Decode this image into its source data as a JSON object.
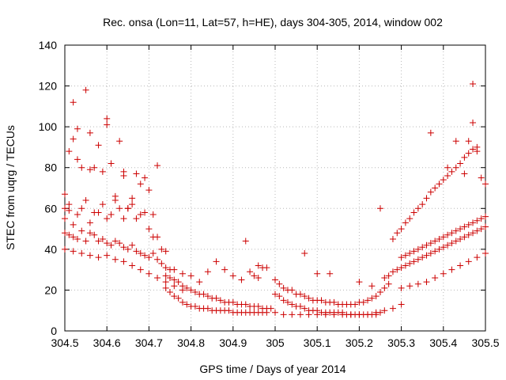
{
  "chart_data": {
    "type": "scatter",
    "title": "Rec. onsa (Lon=11, Lat=57, h=HE), days 304-305, 2014, window 002",
    "xlabel": "GPS time / Days of year 2014",
    "ylabel": "STEC from uqrg / TECUs",
    "xlim": [
      304.5,
      305.5
    ],
    "ylim": [
      0,
      140
    ],
    "x_ticks": [
      304.5,
      304.6,
      304.7,
      304.8,
      304.9,
      305.0,
      305.1,
      305.2,
      305.3,
      305.4,
      305.5
    ],
    "x_tick_labels": [
      "304.5",
      "304.6",
      "304.7",
      "304.8",
      "304.9",
      "305",
      "305.1",
      "305.2",
      "305.3",
      "305.4",
      "305.5"
    ],
    "y_ticks": [
      0,
      20,
      40,
      60,
      80,
      100,
      120,
      140
    ],
    "y_tick_labels": [
      "0",
      "20",
      "40",
      "60",
      "80",
      "100",
      "120",
      "140"
    ],
    "grid": true,
    "marker": "+",
    "color": "#cc0000",
    "series": [
      {
        "name": "",
        "x": [
          304.5,
          304.5,
          304.51,
          304.51,
          304.52,
          304.52,
          304.53,
          304.53,
          304.54,
          304.55,
          304.56,
          304.56,
          304.57,
          304.58,
          304.59,
          304.6,
          304.6,
          304.61,
          304.62,
          304.63,
          304.64,
          304.64,
          304.65,
          304.66,
          304.67,
          304.68,
          304.69,
          304.7,
          304.71,
          304.72,
          304.5,
          304.51,
          304.52,
          304.53,
          304.54,
          304.55,
          304.56,
          304.57,
          304.58,
          304.59,
          304.6,
          304.61,
          304.62,
          304.63,
          304.64,
          304.65,
          304.66,
          304.67,
          304.68,
          304.69,
          304.7,
          304.71,
          304.72,
          304.73,
          304.74,
          304.5,
          304.51,
          304.52,
          304.53,
          304.54,
          304.55,
          304.56,
          304.57,
          304.58,
          304.59,
          304.6,
          304.61,
          304.62,
          304.63,
          304.64,
          304.65,
          304.66,
          304.67,
          304.68,
          304.69,
          304.7,
          304.71,
          304.72,
          304.73,
          304.74,
          304.75,
          304.5,
          304.52,
          304.54,
          304.56,
          304.58,
          304.6,
          304.62,
          304.64,
          304.66,
          304.68,
          304.7,
          304.72,
          304.74,
          304.76,
          304.78,
          304.74,
          304.75,
          304.76,
          304.77,
          304.78,
          304.79,
          304.8,
          304.81,
          304.82,
          304.83,
          304.84,
          304.85,
          304.86,
          304.87,
          304.88,
          304.89,
          304.9,
          304.91,
          304.92,
          304.93,
          304.94,
          304.95,
          304.96,
          304.97,
          304.98,
          304.99,
          304.74,
          304.75,
          304.76,
          304.77,
          304.78,
          304.79,
          304.8,
          304.81,
          304.82,
          304.83,
          304.84,
          304.85,
          304.86,
          304.87,
          304.88,
          304.89,
          304.9,
          304.91,
          304.92,
          304.93,
          304.94,
          304.95,
          304.96,
          304.97,
          304.98,
          304.76,
          304.78,
          304.8,
          304.82,
          304.84,
          304.86,
          304.88,
          304.9,
          304.92,
          304.94,
          304.96,
          304.98,
          304.93,
          304.95,
          304.96,
          304.97,
          305.0,
          305.01,
          305.02,
          305.03,
          305.04,
          305.05,
          305.06,
          305.07,
          305.08,
          305.09,
          305.1,
          305.11,
          305.12,
          305.13,
          305.14,
          305.15,
          305.16,
          305.17,
          305.18,
          305.19,
          305.2,
          305.21,
          305.22,
          305.23,
          305.24,
          305.25,
          305.0,
          305.01,
          305.02,
          305.03,
          305.04,
          305.05,
          305.06,
          305.07,
          305.08,
          305.09,
          305.1,
          305.11,
          305.12,
          305.13,
          305.14,
          305.15,
          305.16,
          305.17,
          305.18,
          305.19,
          305.2,
          305.21,
          305.22,
          305.23,
          305.24,
          305.25,
          305.26,
          305.27,
          305.0,
          305.02,
          305.04,
          305.06,
          305.08,
          305.1,
          305.12,
          305.14,
          305.16,
          305.18,
          305.2,
          305.22,
          305.24,
          305.26,
          305.28,
          305.3,
          305.07,
          305.1,
          305.13,
          305.2,
          305.23,
          305.25,
          305.26,
          305.27,
          305.28,
          305.29,
          305.3,
          305.31,
          305.32,
          305.33,
          305.34,
          305.35,
          305.36,
          305.37,
          305.38,
          305.39,
          305.4,
          305.41,
          305.42,
          305.43,
          305.44,
          305.45,
          305.46,
          305.47,
          305.48,
          305.49,
          305.5,
          305.28,
          305.29,
          305.3,
          305.31,
          305.32,
          305.33,
          305.34,
          305.35,
          305.36,
          305.37,
          305.38,
          305.39,
          305.4,
          305.41,
          305.42,
          305.43,
          305.44,
          305.45,
          305.46,
          305.47,
          305.48,
          305.49,
          305.5,
          305.3,
          305.31,
          305.32,
          305.33,
          305.34,
          305.35,
          305.36,
          305.37,
          305.38,
          305.39,
          305.4,
          305.41,
          305.42,
          305.43,
          305.44,
          305.45,
          305.46,
          305.47,
          305.48,
          305.49,
          305.5,
          305.3,
          305.32,
          305.34,
          305.36,
          305.38,
          305.4,
          305.42,
          305.44,
          305.46,
          305.48,
          305.5,
          305.37,
          305.41,
          305.43,
          305.45,
          305.46,
          305.47,
          305.47,
          305.48
        ],
        "y": [
          67,
          60,
          88,
          62,
          112,
          94,
          99,
          84,
          80,
          118,
          79,
          97,
          80,
          91,
          78,
          104,
          101,
          82,
          64,
          93,
          76,
          78,
          60,
          65,
          77,
          72,
          75,
          69,
          57,
          81,
          55,
          59,
          52,
          57,
          60,
          64,
          53,
          58,
          58,
          62,
          55,
          57,
          66,
          60,
          55,
          60,
          62,
          55,
          57,
          58,
          50,
          46,
          46,
          40,
          39,
          48,
          47,
          46,
          45,
          49,
          44,
          48,
          47,
          44,
          45,
          43,
          42,
          44,
          43,
          41,
          40,
          42,
          39,
          38,
          37,
          36,
          38,
          35,
          33,
          31,
          30,
          40,
          39,
          38,
          37,
          36,
          37,
          35,
          34,
          32,
          30,
          28,
          26,
          24,
          22,
          20,
          27,
          26,
          25,
          24,
          22,
          21,
          20,
          19,
          18,
          18,
          17,
          16,
          16,
          15,
          14,
          14,
          14,
          13,
          13,
          13,
          12,
          12,
          12,
          11,
          11,
          11,
          21,
          19,
          17,
          16,
          14,
          13,
          12,
          12,
          11,
          11,
          11,
          10,
          10,
          10,
          10,
          10,
          9,
          9,
          9,
          9,
          9,
          9,
          9,
          9,
          9,
          30,
          28,
          27,
          24,
          29,
          34,
          30,
          27,
          25,
          29,
          32,
          31,
          44,
          27,
          26,
          31,
          18,
          17,
          15,
          14,
          13,
          12,
          12,
          11,
          10,
          10,
          10,
          9,
          9,
          9,
          9,
          9,
          9,
          8,
          8,
          8,
          8,
          8,
          8,
          8,
          8,
          9,
          25,
          23,
          21,
          20,
          20,
          18,
          18,
          17,
          16,
          15,
          15,
          15,
          14,
          14,
          14,
          13,
          13,
          13,
          13,
          13,
          14,
          14,
          15,
          16,
          17,
          19,
          21,
          23,
          9,
          8,
          8,
          8,
          8,
          8,
          8,
          8,
          8,
          8,
          8,
          8,
          9,
          10,
          11,
          13,
          38,
          28,
          28,
          24,
          22,
          60,
          26,
          27,
          29,
          30,
          31,
          32,
          33,
          34,
          35,
          36,
          37,
          38,
          39,
          40,
          41,
          42,
          43,
          44,
          45,
          46,
          47,
          48,
          49,
          50,
          51,
          45,
          48,
          50,
          53,
          55,
          58,
          60,
          62,
          65,
          68,
          70,
          72,
          74,
          76,
          78,
          80,
          82,
          85,
          87,
          89,
          90,
          75,
          72,
          36,
          37,
          38,
          39,
          40,
          41,
          42,
          43,
          44,
          45,
          46,
          47,
          48,
          49,
          50,
          51,
          52,
          53,
          54,
          55,
          56,
          21,
          22,
          23,
          24,
          26,
          28,
          30,
          32,
          34,
          36,
          38,
          97,
          80,
          93,
          77,
          93,
          102,
          121,
          88
        ]
      }
    ]
  }
}
